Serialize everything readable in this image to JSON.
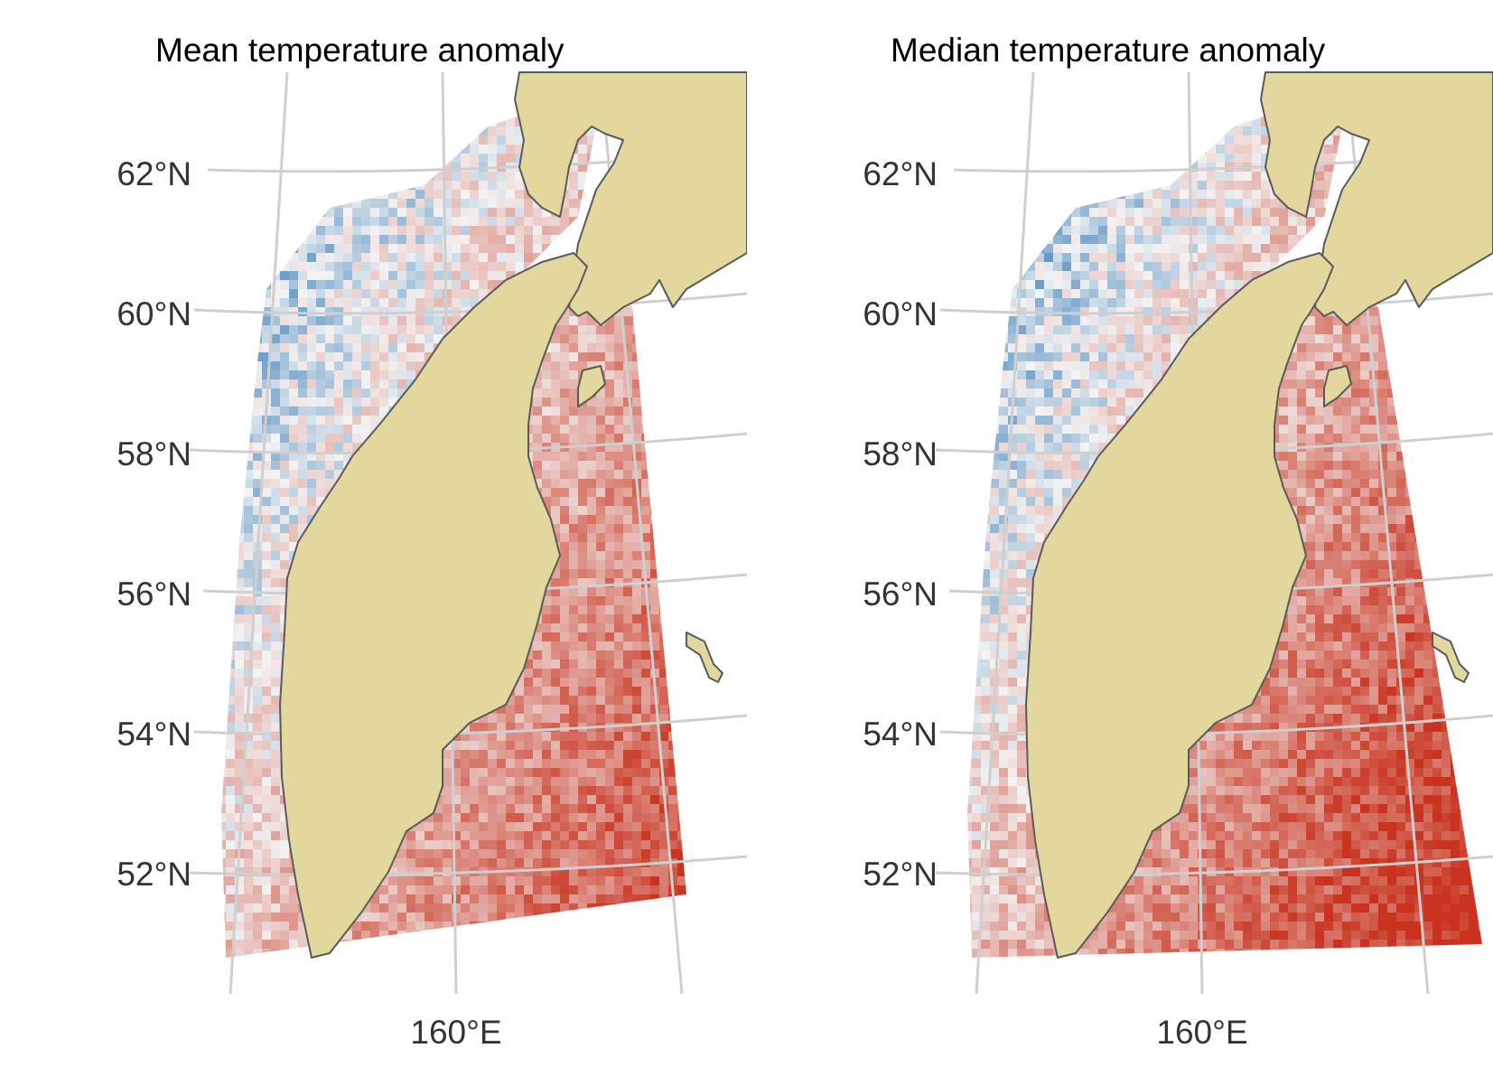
{
  "panels": [
    {
      "title": "Mean temperature anomaly",
      "lat_labels": [
        "62°N",
        "60°N",
        "58°N",
        "56°N",
        "54°N",
        "52°N"
      ],
      "lon_labels": [
        "160°E"
      ],
      "pattern": "mean"
    },
    {
      "title": "Median temperature anomaly",
      "lat_labels": [
        "62°N",
        "60°N",
        "58°N",
        "56°N",
        "54°N",
        "52°N"
      ],
      "lon_labels": [
        "160°E"
      ],
      "pattern": "median"
    }
  ],
  "colors": {
    "land": "#e2d79c",
    "coast": "#5a5a5a",
    "cold": "#1f6fb2",
    "warm": "#c8321e",
    "neutral": "#f3f3f3",
    "graticule": "#cfcfcf"
  }
}
